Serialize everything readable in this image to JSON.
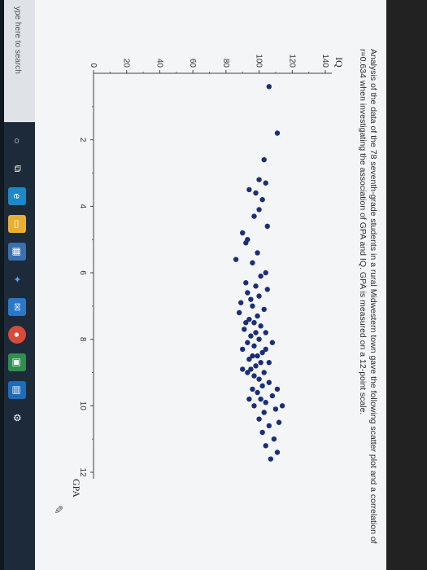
{
  "description": "Analysis of the data of the 78 seventh-grade students in a rural Midwestern town gave the following scatter plot and a correlation of r=0.634 when investigating the association of GPA and IQ. GPA is measured on a 12-point scale.",
  "taskbar": {
    "search_placeholder": "ype here to search",
    "icons": [
      "search-circle-icon",
      "task-view-icon",
      "edge-icon",
      "file-explorer-icon",
      "store-icon",
      "dropbox-icon",
      "mail-icon",
      "chrome-icon",
      "app-icon",
      "app-icon",
      "settings-icon"
    ]
  },
  "chart_data": {
    "type": "scatter",
    "title": "",
    "xlabel": "GPA",
    "ylabel": "IQ",
    "xlim": [
      0,
      12
    ],
    "ylim": [
      0,
      140
    ],
    "xticks": [
      2,
      4,
      6,
      8,
      10,
      12
    ],
    "yticks": [
      0,
      20,
      40,
      60,
      80,
      100,
      120,
      140
    ],
    "marker_color": "#1a2f7a",
    "series": [
      {
        "name": "",
        "points": [
          [
            0.4,
            106
          ],
          [
            1.8,
            111
          ],
          [
            2.6,
            103
          ],
          [
            3.2,
            100
          ],
          [
            3.3,
            104
          ],
          [
            3.5,
            94
          ],
          [
            3.6,
            98
          ],
          [
            3.8,
            102
          ],
          [
            4.1,
            100
          ],
          [
            4.3,
            97
          ],
          [
            4.6,
            105
          ],
          [
            4.8,
            90
          ],
          [
            5.0,
            93
          ],
          [
            5.1,
            92
          ],
          [
            5.6,
            86
          ],
          [
            5.7,
            96
          ],
          [
            6.1,
            101
          ],
          [
            6.3,
            92
          ],
          [
            6.4,
            98
          ],
          [
            6.5,
            105
          ],
          [
            6.6,
            93
          ],
          [
            6.8,
            95
          ],
          [
            6.9,
            89
          ],
          [
            7.0,
            96
          ],
          [
            7.1,
            103
          ],
          [
            7.3,
            99
          ],
          [
            7.4,
            94
          ],
          [
            7.5,
            97
          ],
          [
            7.6,
            101
          ],
          [
            7.7,
            91
          ],
          [
            7.8,
            98
          ],
          [
            7.9,
            95
          ],
          [
            8.0,
            100
          ],
          [
            8.1,
            93
          ],
          [
            8.2,
            97
          ],
          [
            8.3,
            104
          ],
          [
            8.4,
            102
          ],
          [
            8.5,
            96
          ],
          [
            8.5,
            99
          ],
          [
            8.6,
            94
          ],
          [
            8.7,
            101
          ],
          [
            8.8,
            98
          ],
          [
            8.9,
            95
          ],
          [
            9.0,
            103
          ],
          [
            9.1,
            97
          ],
          [
            9.2,
            100
          ],
          [
            9.3,
            106
          ],
          [
            9.4,
            102
          ],
          [
            9.5,
            96
          ],
          [
            9.6,
            99
          ],
          [
            9.7,
            108
          ],
          [
            9.8,
            101
          ],
          [
            9.9,
            104
          ],
          [
            10.0,
            97
          ],
          [
            10.1,
            110
          ],
          [
            10.2,
            103
          ],
          [
            10.4,
            100
          ],
          [
            10.5,
            112
          ],
          [
            10.6,
            106
          ],
          [
            10.8,
            102
          ],
          [
            11.0,
            109
          ],
          [
            11.2,
            104
          ],
          [
            11.4,
            111
          ],
          [
            11.6,
            107
          ],
          [
            8.3,
            90
          ],
          [
            7.2,
            88
          ],
          [
            6.0,
            104
          ],
          [
            5.4,
            99
          ],
          [
            9.0,
            93
          ],
          [
            8.7,
            106
          ],
          [
            7.8,
            104
          ],
          [
            10.0,
            114
          ],
          [
            9.5,
            111
          ],
          [
            8.1,
            108
          ],
          [
            6.7,
            100
          ],
          [
            7.5,
            92
          ],
          [
            8.9,
            90
          ],
          [
            9.8,
            94
          ]
        ]
      }
    ]
  }
}
